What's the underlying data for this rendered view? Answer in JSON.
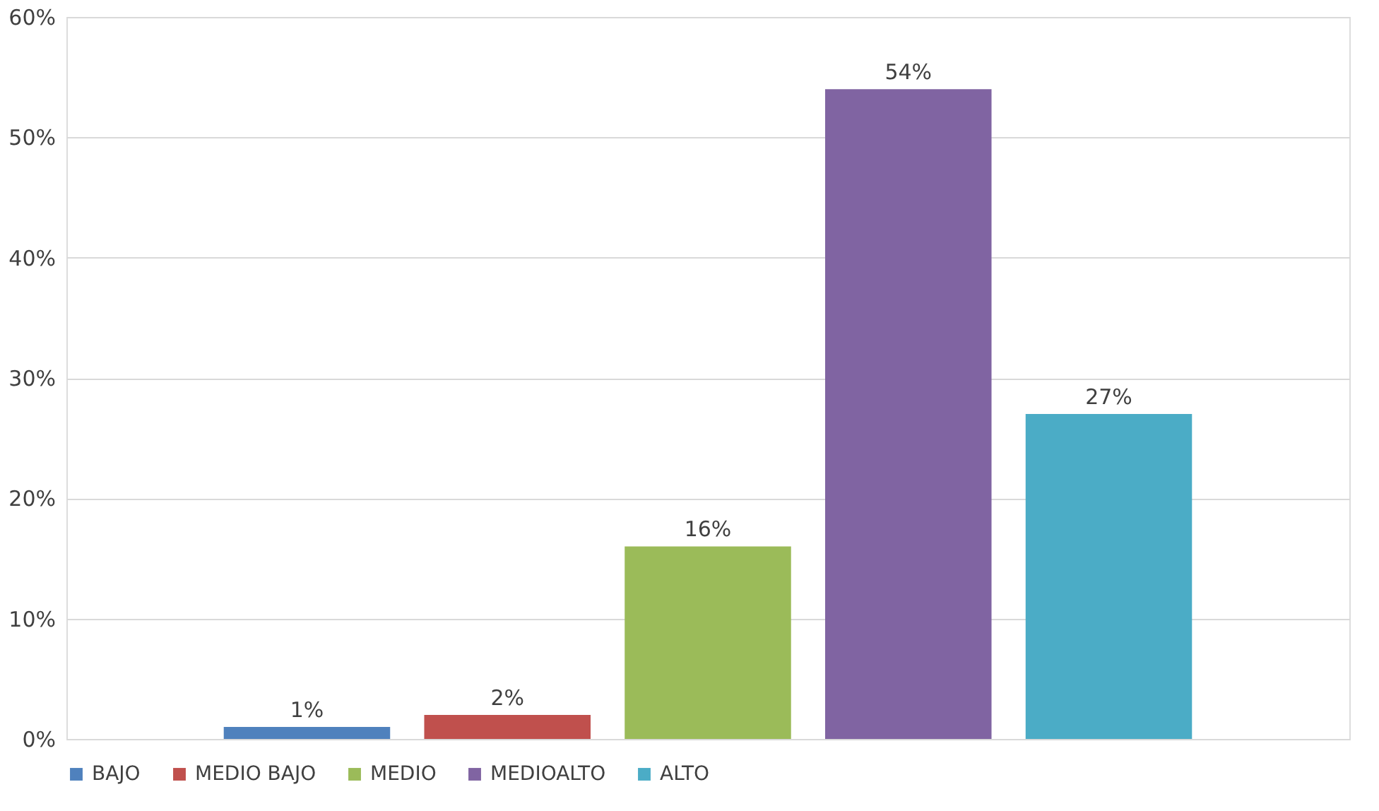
{
  "chart_data": {
    "type": "bar",
    "categories": [
      null
    ],
    "series": [
      {
        "name": "BAJO",
        "color": "#4f81bd",
        "values": [
          1
        ],
        "value_labels": [
          "1%"
        ]
      },
      {
        "name": "MEDIO BAJO",
        "color": "#c0504d",
        "values": [
          2
        ],
        "value_labels": [
          "2%"
        ]
      },
      {
        "name": "MEDIO",
        "color": "#9bbb59",
        "values": [
          16
        ],
        "value_labels": [
          "16%"
        ]
      },
      {
        "name": "MEDIOALTO",
        "color": "#8064a2",
        "values": [
          54
        ],
        "value_labels": [
          "54%"
        ]
      },
      {
        "name": "ALTO",
        "color": "#4bacc6",
        "values": [
          27
        ],
        "value_labels": [
          "27%"
        ]
      }
    ],
    "ylim": [
      0,
      60
    ],
    "yticks": [
      {
        "value": 0,
        "label": "0%"
      },
      {
        "value": 10,
        "label": "10%"
      },
      {
        "value": 20,
        "label": "20%"
      },
      {
        "value": 30,
        "label": "30%"
      },
      {
        "value": 40,
        "label": "40%"
      },
      {
        "value": 50,
        "label": "50%"
      },
      {
        "value": 60,
        "label": "60%"
      }
    ],
    "grid": "y",
    "legend": "bottom"
  }
}
